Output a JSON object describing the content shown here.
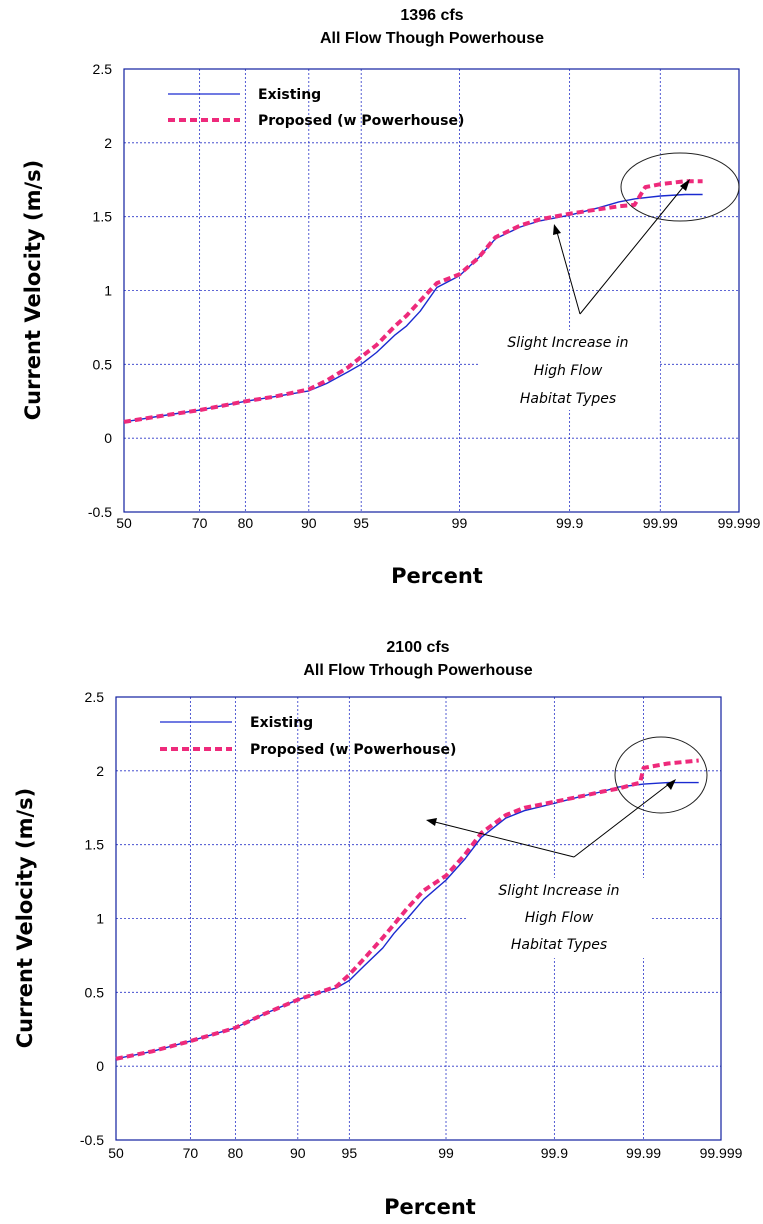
{
  "chart_data": [
    {
      "type": "line",
      "title": "1396 cfs",
      "subtitle": "All Flow Though Powerhouse",
      "xlabel": "Percent",
      "ylabel": "Current Velocity (m/s)",
      "x_scale": "normal-probability",
      "x_ticks": [
        "50",
        "70",
        "80",
        "90",
        "95",
        "99",
        "99.9",
        "99.99",
        "99.999"
      ],
      "y_ticks": [
        "2.5",
        "2",
        "1.5",
        "1",
        "0.5",
        "0",
        "-0.5"
      ],
      "ylim": [
        -0.5,
        2.5
      ],
      "grid": true,
      "legend_position": "top-left",
      "series": [
        {
          "name": "Existing",
          "color": "#1a2ad0",
          "style": "solid",
          "x": [
            50,
            60,
            70,
            80,
            85,
            90,
            92,
            94,
            95,
            96,
            97,
            97.5,
            98,
            98.5,
            99,
            99.3,
            99.5,
            99.7,
            99.8,
            99.9,
            99.95,
            99.97,
            99.98,
            99.99,
            99.995,
            99.997
          ],
          "y": [
            0.11,
            0.15,
            0.19,
            0.25,
            0.28,
            0.32,
            0.37,
            0.45,
            0.5,
            0.58,
            0.7,
            0.76,
            0.86,
            1.02,
            1.1,
            1.22,
            1.35,
            1.43,
            1.47,
            1.51,
            1.56,
            1.6,
            1.62,
            1.64,
            1.65,
            1.65
          ]
        },
        {
          "name": "Proposed (w Powerhouse)",
          "color": "#ee2a7b",
          "style": "dashed",
          "x": [
            50,
            60,
            70,
            80,
            85,
            90,
            92,
            94,
            95,
            96,
            97,
            97.5,
            98,
            98.5,
            99,
            99.3,
            99.5,
            99.7,
            99.8,
            99.9,
            99.95,
            99.97,
            99.98,
            99.985,
            99.99,
            99.995,
            99.997
          ],
          "y": [
            0.11,
            0.15,
            0.19,
            0.25,
            0.28,
            0.33,
            0.39,
            0.48,
            0.55,
            0.63,
            0.76,
            0.83,
            0.93,
            1.05,
            1.11,
            1.22,
            1.36,
            1.44,
            1.48,
            1.52,
            1.55,
            1.57,
            1.58,
            1.7,
            1.72,
            1.74,
            1.74
          ]
        }
      ],
      "annotation": {
        "lines": [
          "Slight Increase in",
          "High Flow",
          "Habitat Types"
        ]
      }
    },
    {
      "type": "line",
      "title": "2100 cfs",
      "subtitle": "All Flow Trhough Powerhouse",
      "xlabel": "Percent",
      "ylabel": "Current Velocity (m/s)",
      "x_scale": "normal-probability",
      "x_ticks": [
        "50",
        "70",
        "80",
        "90",
        "95",
        "99",
        "99.9",
        "99.99",
        "99.999"
      ],
      "y_ticks": [
        "2.5",
        "2",
        "1.5",
        "1",
        "0.5",
        "0",
        "-0.5"
      ],
      "ylim": [
        -0.5,
        2.5
      ],
      "grid": true,
      "legend_position": "top-left",
      "series": [
        {
          "name": "Existing",
          "color": "#1a2ad0",
          "style": "solid",
          "x": [
            50,
            60,
            70,
            80,
            85,
            90,
            92,
            94,
            95,
            96,
            97,
            97.5,
            98,
            98.5,
            99,
            99.3,
            99.5,
            99.7,
            99.8,
            99.9,
            99.95,
            99.97,
            99.98,
            99.99,
            99.995,
            99.998
          ],
          "y": [
            0.05,
            0.1,
            0.17,
            0.26,
            0.35,
            0.45,
            0.49,
            0.53,
            0.58,
            0.68,
            0.8,
            0.9,
            1.0,
            1.13,
            1.26,
            1.4,
            1.55,
            1.68,
            1.73,
            1.78,
            1.83,
            1.86,
            1.89,
            1.91,
            1.92,
            1.92
          ]
        },
        {
          "name": "Proposed (w Powerhouse)",
          "color": "#ee2a7b",
          "style": "dashed",
          "x": [
            50,
            60,
            70,
            80,
            85,
            90,
            92,
            94,
            95,
            96,
            97,
            97.5,
            98,
            98.5,
            99,
            99.3,
            99.5,
            99.7,
            99.8,
            99.9,
            99.95,
            99.97,
            99.98,
            99.989,
            99.99,
            99.995,
            99.998
          ],
          "y": [
            0.05,
            0.1,
            0.17,
            0.26,
            0.35,
            0.45,
            0.49,
            0.54,
            0.62,
            0.73,
            0.87,
            0.96,
            1.07,
            1.19,
            1.29,
            1.43,
            1.58,
            1.7,
            1.75,
            1.79,
            1.83,
            1.86,
            1.88,
            1.92,
            2.02,
            2.05,
            2.07
          ]
        }
      ],
      "annotation": {
        "lines": [
          "Slight Increase in",
          "High Flow",
          "Habitat Types"
        ]
      }
    }
  ]
}
